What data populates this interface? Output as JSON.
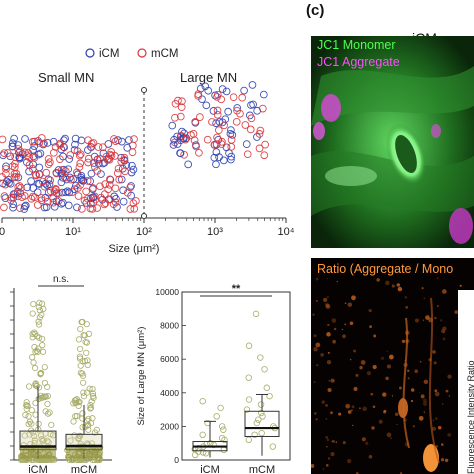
{
  "scatter": {
    "chart_data": {
      "type": "scatter",
      "xlabel": "Size (μm²)",
      "x_scale": "log",
      "xlim": [
        1,
        10000
      ],
      "x_ticks": [
        {
          "value": 1,
          "label": "0"
        },
        {
          "value": 10,
          "label": "10¹"
        },
        {
          "value": 100,
          "label": "10²"
        },
        {
          "value": 1000,
          "label": "10³"
        },
        {
          "value": 10000,
          "label": "10⁴"
        }
      ],
      "legend": {
        "placement": "top",
        "entries": [
          "iCM",
          "mCM"
        ]
      },
      "threshold_x": 100,
      "regions": [
        "Small MN",
        "Large MN"
      ],
      "colors": {
        "iCM": "#2b3fb0",
        "mCM": "#d9343a"
      },
      "seed": 7,
      "series": [
        {
          "name": "iCM",
          "clusters": [
            {
              "xmin": 1,
              "xmax": 80,
              "ymin": 0.05,
              "ymax": 0.45,
              "n": 140
            },
            {
              "xmin": 250,
              "xmax": 5500,
              "ymin": 0.3,
              "ymax": 0.75,
              "n": 55
            }
          ]
        },
        {
          "name": "mCM",
          "clusters": [
            {
              "xmin": 1,
              "xmax": 80,
              "ymin": 0.05,
              "ymax": 0.45,
              "n": 150
            },
            {
              "xmin": 250,
              "xmax": 5500,
              "ymin": 0.35,
              "ymax": 0.7,
              "n": 50
            }
          ]
        }
      ]
    }
  },
  "box_small": {
    "chart_data": {
      "type": "box",
      "categories": [
        "iCM",
        "mCM"
      ],
      "significance": "n.s.",
      "colors": {
        "box_fill": "#8a8a2a",
        "box_fill_light": "#d8d2a8",
        "points": "#a8ad6a"
      },
      "boxes": [
        {
          "q1": 0.22,
          "median": 0.29,
          "q3": 0.62,
          "whisker_low": 0.03,
          "whisker_high": 1.58
        },
        {
          "q1": 0.22,
          "median": 0.3,
          "q3": 0.55,
          "whisker_low": 0.03,
          "whisker_high": 1.18
        }
      ],
      "points": [
        {
          "n": 160,
          "max": 3.4
        },
        {
          "n": 130,
          "max": 3.0
        }
      ],
      "ylim": [
        0,
        3.6
      ]
    }
  },
  "box_large": {
    "chart_data": {
      "type": "box",
      "categories": [
        "iCM",
        "mCM"
      ],
      "ylabel": "Size of Large MN (μm²)",
      "ylim": [
        0,
        10000
      ],
      "y_ticks": [
        0,
        2000,
        4000,
        6000,
        8000,
        10000
      ],
      "significance": "**",
      "colors": {
        "box_fill": "#ffffff",
        "points": "#a8ad6a"
      },
      "boxes": [
        {
          "q1": 550,
          "median": 800,
          "q3": 1100,
          "whisker_low": 150,
          "whisker_high": 2300
        },
        {
          "q1": 1400,
          "median": 1900,
          "q3": 2900,
          "whisker_low": 250,
          "whisker_high": 3900
        }
      ],
      "points": [
        {
          "values": [
            400,
            600,
            900,
            1200,
            1500,
            2000,
            2600,
            3100,
            3500,
            300,
            700,
            500,
            800,
            1000,
            1300,
            1800,
            2200,
            650,
            950,
            450
          ]
        },
        {
          "values": [
            800,
            1200,
            1600,
            2000,
            2400,
            2800,
            3300,
            3800,
            4300,
            4900,
            5400,
            6100,
            6800,
            8700,
            1500,
            1900,
            2200,
            2600,
            3000,
            3600
          ]
        }
      ]
    }
  },
  "panel_c": {
    "tag": "(c)",
    "title": "iCM",
    "top_image": {
      "label_green": "JC1 Monomer",
      "label_magenta": "JC1 Aggregate",
      "color_green": "#4dff4d",
      "color_magenta": "#ff4dff"
    },
    "bottom_image": {
      "label": "Ratio (Aggregate / Mono",
      "color": "#ff9a3c"
    },
    "side_axis_label": "Fluorescence Intensity Ratio"
  }
}
